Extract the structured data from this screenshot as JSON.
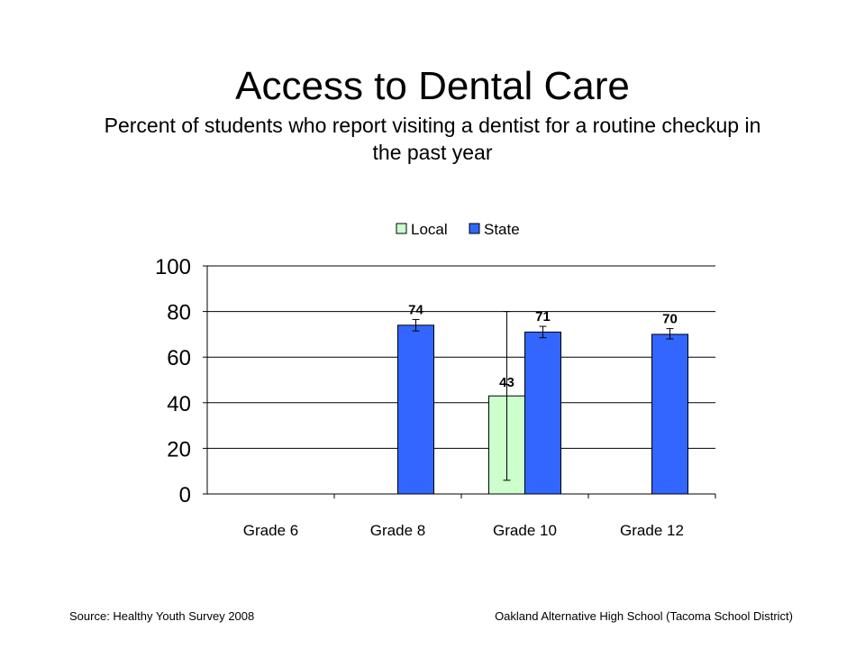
{
  "slide": {
    "title": "Access to Dental Care",
    "subtitle": "Percent of students who report visiting a dentist for a routine checkup in the past year",
    "source": "Source: Healthy Youth Survey 2008",
    "school": "Oakland Alternative High School (Tacoma School District)"
  },
  "chart_data": {
    "type": "bar",
    "title": "",
    "xlabel": "",
    "ylabel": "",
    "categories": [
      "Grade 6",
      "Grade 8",
      "Grade 10",
      "Grade 12"
    ],
    "series": [
      {
        "name": "Local",
        "color": "#ccffcc",
        "values": [
          null,
          null,
          43,
          null
        ],
        "labels": [
          null,
          null,
          "43",
          null
        ],
        "error_low": [
          null,
          null,
          6,
          null
        ],
        "error_high": [
          null,
          null,
          80,
          null
        ]
      },
      {
        "name": "State",
        "color": "#3366ff",
        "values": [
          null,
          74,
          71,
          70
        ],
        "labels": [
          null,
          "74",
          "71",
          "70"
        ],
        "error_low": [
          null,
          71.5,
          68.5,
          68
        ],
        "error_high": [
          null,
          76.5,
          73.5,
          72.5
        ]
      }
    ],
    "ylim": [
      0,
      100
    ],
    "yticks": [
      0,
      20,
      40,
      60,
      80,
      100
    ],
    "grid": true,
    "legend": "top"
  }
}
